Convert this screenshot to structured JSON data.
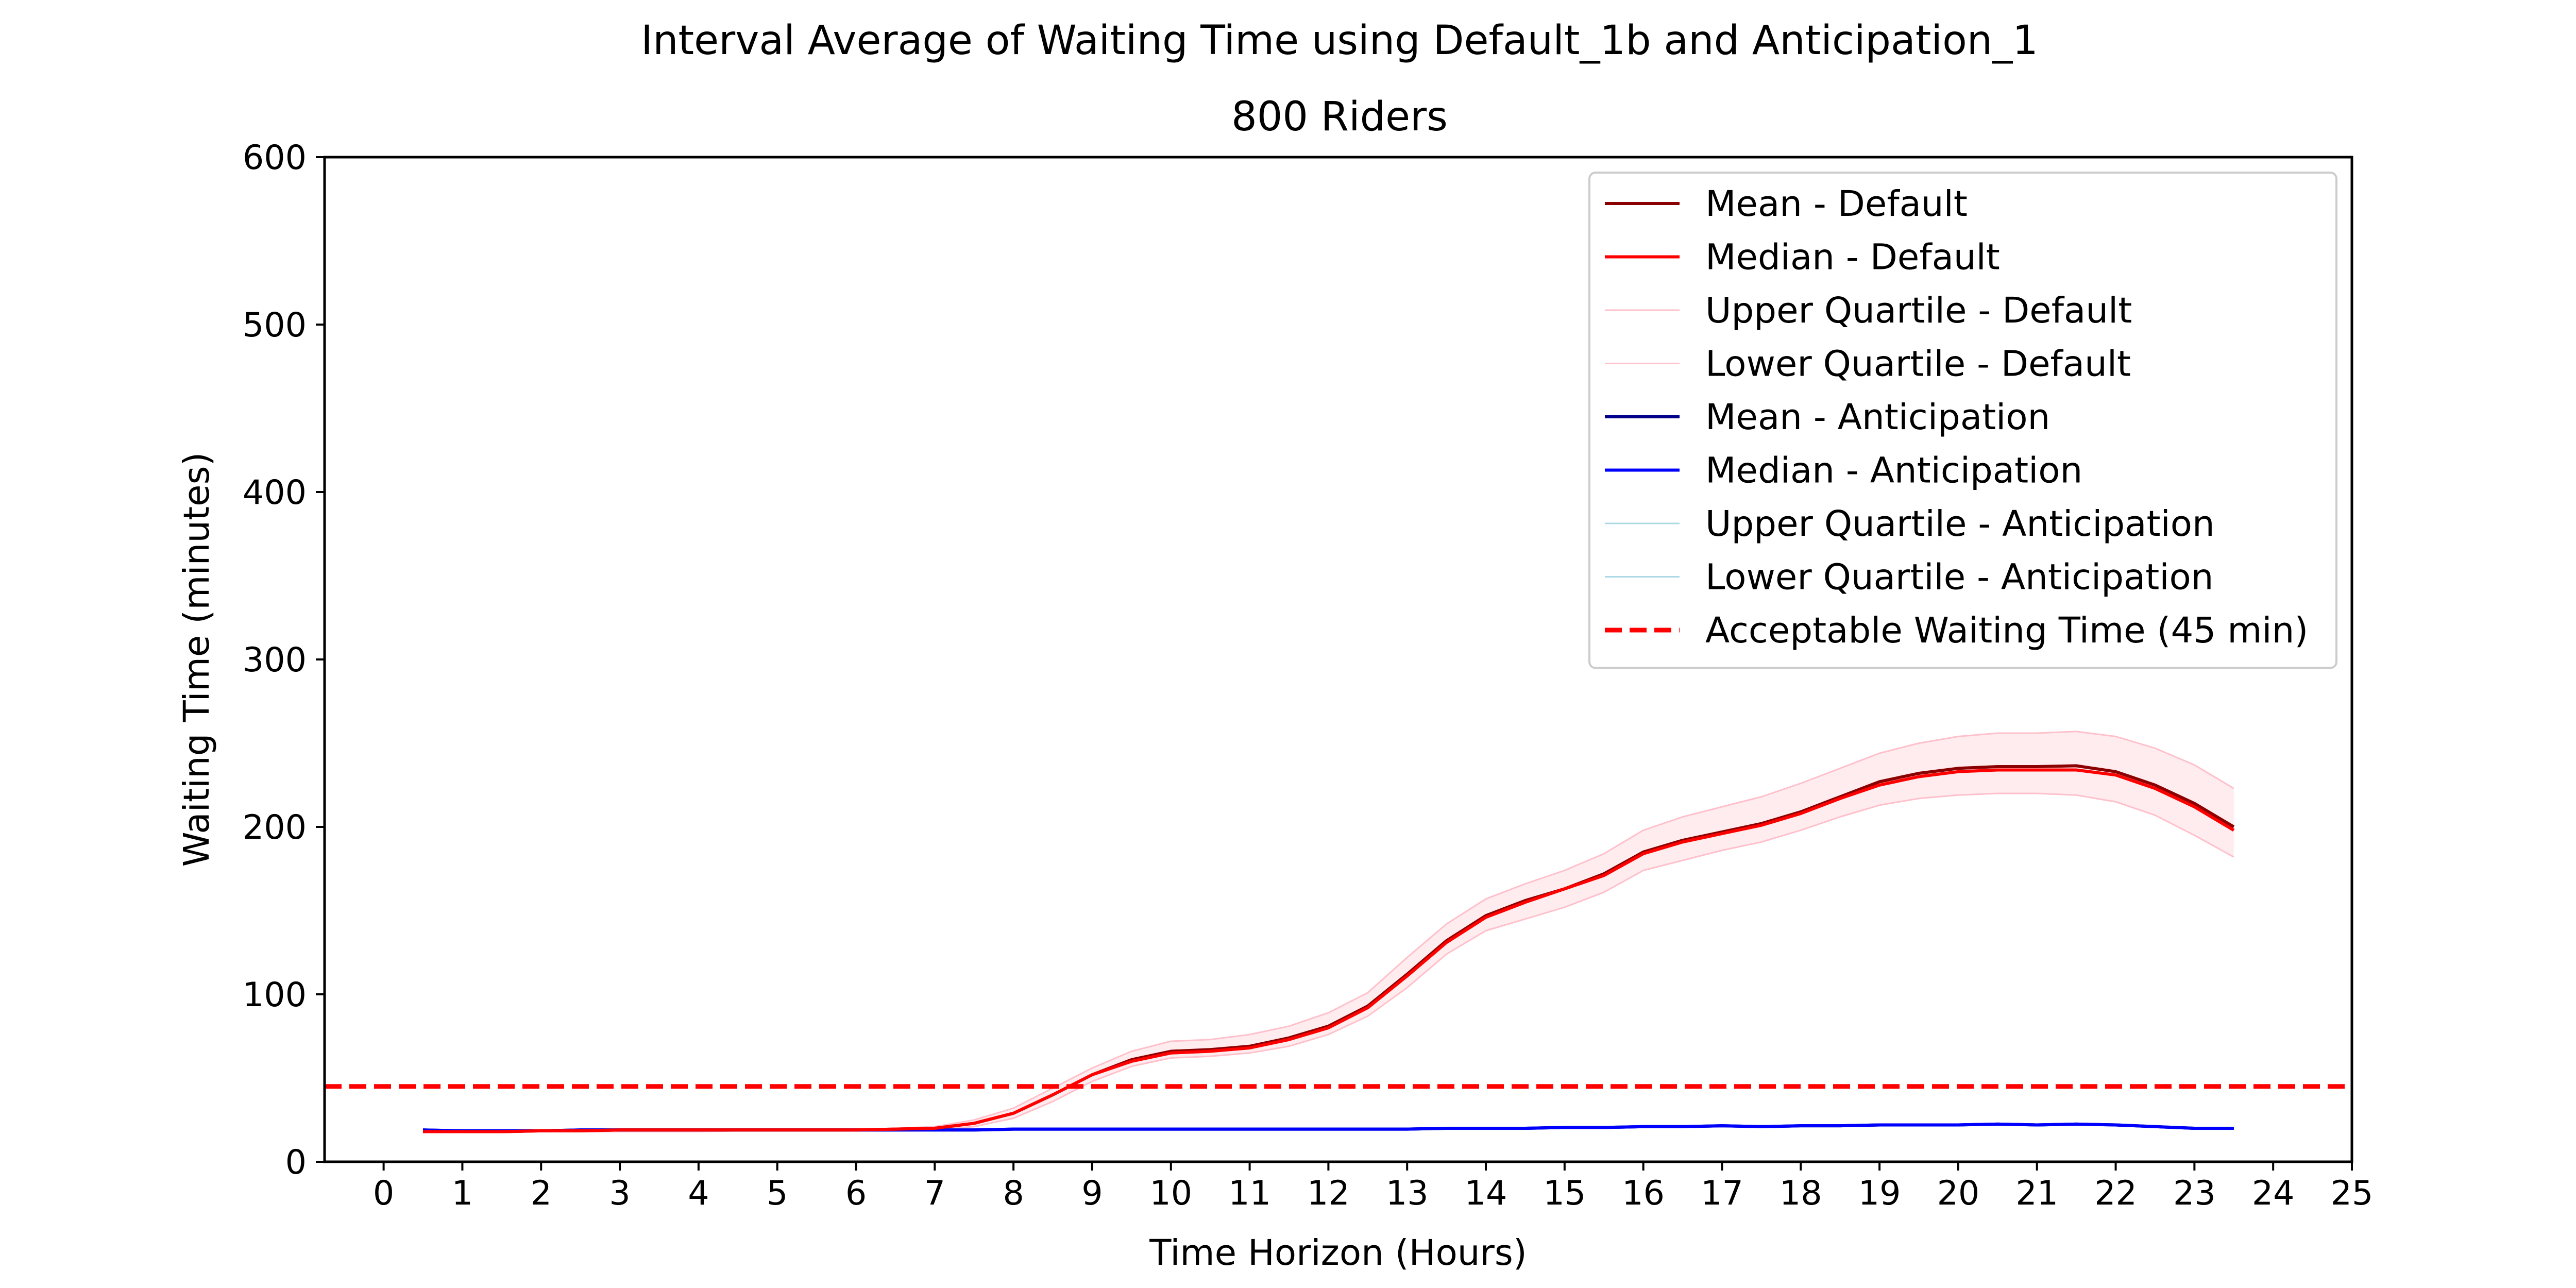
{
  "chart_data": {
    "type": "line",
    "title": "Interval Average of Waiting Time using Default_1b and Anticipation_1",
    "subtitle": "800 Riders",
    "xlabel": "Time Horizon (Hours)",
    "ylabel": "Waiting Time (minutes)",
    "xlim": [
      -0.75,
      25
    ],
    "ylim": [
      0,
      600
    ],
    "xticks": [
      0,
      1,
      2,
      3,
      4,
      5,
      6,
      7,
      8,
      9,
      10,
      11,
      12,
      13,
      14,
      15,
      16,
      17,
      18,
      19,
      20,
      21,
      22,
      23,
      24,
      25
    ],
    "yticks": [
      0,
      100,
      200,
      300,
      400,
      500,
      600
    ],
    "legend_position": "top-right",
    "grid": false,
    "x": [
      0.5,
      1,
      1.5,
      2,
      2.5,
      3,
      3.5,
      4,
      4.5,
      5,
      5.5,
      6,
      6.5,
      7,
      7.5,
      8,
      8.5,
      9,
      9.5,
      10,
      10.5,
      11,
      11.5,
      12,
      12.5,
      13,
      13.5,
      14,
      14.5,
      15,
      15.5,
      16,
      16.5,
      17,
      17.5,
      18,
      18.5,
      19,
      19.5,
      20,
      20.5,
      21,
      21.5,
      22,
      22.5,
      23,
      23.5
    ],
    "series": [
      {
        "name": "Mean - Default",
        "color": "#8b0000",
        "style": "solid",
        "values": [
          18,
          18,
          18,
          18.5,
          18.5,
          19,
          19,
          19,
          19,
          19,
          19,
          19,
          19.5,
          20,
          23,
          29,
          40,
          52,
          61,
          66,
          67,
          69,
          74,
          81,
          93,
          112,
          132,
          147,
          156,
          163,
          172,
          185,
          192,
          197,
          202,
          209,
          218,
          227,
          232,
          235,
          236,
          236,
          236.5,
          233,
          225,
          214,
          200
        ]
      },
      {
        "name": "Median - Default",
        "color": "#ff0000",
        "style": "solid",
        "values": [
          18,
          18,
          18,
          18.5,
          18.5,
          19,
          19,
          19,
          19,
          19,
          19,
          19,
          19.5,
          20,
          23,
          29,
          40,
          52,
          60,
          65,
          66,
          68,
          73,
          80,
          92,
          111,
          131,
          146,
          155,
          163,
          171,
          184,
          191,
          196,
          201,
          208,
          217,
          225,
          230,
          233,
          234,
          234,
          234,
          231,
          223,
          212,
          198
        ]
      },
      {
        "name": "Upper Quartile - Default",
        "color": "#ffc0cb",
        "style": "solid",
        "values": [
          18.5,
          18.5,
          19,
          19,
          19,
          19.5,
          19.5,
          19.5,
          19.5,
          19.5,
          19.5,
          19.5,
          20,
          21,
          25,
          32,
          44,
          56,
          66,
          72,
          73,
          76,
          81,
          89,
          101,
          122,
          142,
          157,
          166,
          174,
          184,
          198,
          206,
          212,
          218,
          226,
          235,
          244,
          250,
          254,
          256,
          256,
          257,
          254,
          247,
          237,
          223
        ]
      },
      {
        "name": "Lower Quartile - Default",
        "color": "#ffc0cb",
        "style": "solid",
        "values": [
          17.5,
          17.5,
          17.5,
          18,
          18,
          18,
          18,
          18,
          18.5,
          18.5,
          18.5,
          18.5,
          18.5,
          19,
          21,
          26,
          36,
          48,
          57,
          62,
          63,
          65,
          69,
          76,
          87,
          104,
          124,
          138,
          145,
          152,
          161,
          174,
          180,
          186,
          191,
          198,
          206,
          213,
          217,
          219,
          220,
          220,
          219,
          215,
          207,
          195,
          182
        ]
      },
      {
        "name": "Mean - Anticipation",
        "color": "#00008b",
        "style": "solid",
        "values": [
          19,
          18.5,
          18.5,
          18.5,
          19,
          19,
          19,
          19,
          19,
          19,
          19,
          19,
          19,
          19,
          19,
          19.5,
          19.5,
          19.5,
          19.5,
          19.5,
          19.5,
          19.5,
          19.5,
          19.5,
          19.5,
          19.5,
          20,
          20,
          20,
          20.5,
          20.5,
          21,
          21,
          21.5,
          21,
          21.5,
          21.5,
          22,
          22,
          22,
          22.5,
          22,
          22.5,
          22,
          21,
          20,
          20
        ]
      },
      {
        "name": "Median - Anticipation",
        "color": "#0000ff",
        "style": "solid",
        "values": [
          19,
          18.5,
          18.5,
          18.5,
          19,
          19,
          19,
          19,
          19,
          19,
          19,
          19,
          19,
          19,
          19,
          19.5,
          19.5,
          19.5,
          19.5,
          19.5,
          19.5,
          19.5,
          19.5,
          19.5,
          19.5,
          19.5,
          20,
          20,
          20,
          20.5,
          20.5,
          21,
          21,
          21.5,
          21,
          21.5,
          21.5,
          22,
          22,
          22,
          22.5,
          22,
          22.5,
          22,
          21,
          20,
          20
        ]
      },
      {
        "name": "Upper Quartile - Anticipation",
        "color": "#add8e6",
        "style": "solid",
        "values": [
          19.5,
          19,
          19,
          19,
          19.5,
          19.5,
          19.5,
          19.5,
          19.5,
          19.5,
          19.5,
          19.5,
          19.5,
          19.5,
          19.5,
          20,
          20,
          20,
          20,
          20,
          20,
          20,
          20,
          20,
          20,
          20,
          20.5,
          20.5,
          20.5,
          21,
          21,
          21.5,
          21.5,
          22,
          21.5,
          22,
          22,
          22.5,
          22.5,
          22.5,
          23,
          22.5,
          23,
          22.5,
          21.5,
          20.5,
          20.5
        ]
      },
      {
        "name": "Lower Quartile - Anticipation",
        "color": "#add8e6",
        "style": "solid",
        "values": [
          18.5,
          18,
          18,
          18,
          18.5,
          18.5,
          18.5,
          18.5,
          18.5,
          18.5,
          18.5,
          18.5,
          18.5,
          18.5,
          18.5,
          19,
          19,
          19,
          19,
          19,
          19,
          19,
          19,
          19,
          19,
          19,
          19.5,
          19.5,
          19.5,
          20,
          20,
          20.5,
          20.5,
          21,
          20.5,
          21,
          21,
          21.5,
          21.5,
          21.5,
          22,
          21.5,
          22,
          21.5,
          20.5,
          19.5,
          19.5
        ]
      }
    ],
    "bands": [
      {
        "name": "Default IQR",
        "upper": "Upper Quartile - Default",
        "lower": "Lower Quartile - Default",
        "color": "#ffc0cb",
        "opacity": 0.3
      },
      {
        "name": "Anticipation IQR",
        "upper": "Upper Quartile - Anticipation",
        "lower": "Lower Quartile - Anticipation",
        "color": "#add8e6",
        "opacity": 0.3
      }
    ],
    "reference_lines": [
      {
        "name": "Acceptable Waiting Time (45 min)",
        "y": 45,
        "color": "#ff0000",
        "style": "dashed"
      }
    ],
    "legend": [
      {
        "label": "Mean - Default",
        "color": "#8b0000",
        "style": "solid"
      },
      {
        "label": "Median - Default",
        "color": "#ff0000",
        "style": "solid"
      },
      {
        "label": "Upper Quartile - Default",
        "color": "#ffc0cb",
        "style": "solid"
      },
      {
        "label": "Lower Quartile - Default",
        "color": "#ffc0cb",
        "style": "solid"
      },
      {
        "label": "Mean - Anticipation",
        "color": "#00008b",
        "style": "solid"
      },
      {
        "label": "Median - Anticipation",
        "color": "#0000ff",
        "style": "solid"
      },
      {
        "label": "Upper Quartile - Anticipation",
        "color": "#add8e6",
        "style": "solid"
      },
      {
        "label": "Lower Quartile - Anticipation",
        "color": "#add8e6",
        "style": "solid"
      },
      {
        "label": "Acceptable Waiting Time (45 min)",
        "color": "#ff0000",
        "style": "dashed"
      }
    ]
  }
}
